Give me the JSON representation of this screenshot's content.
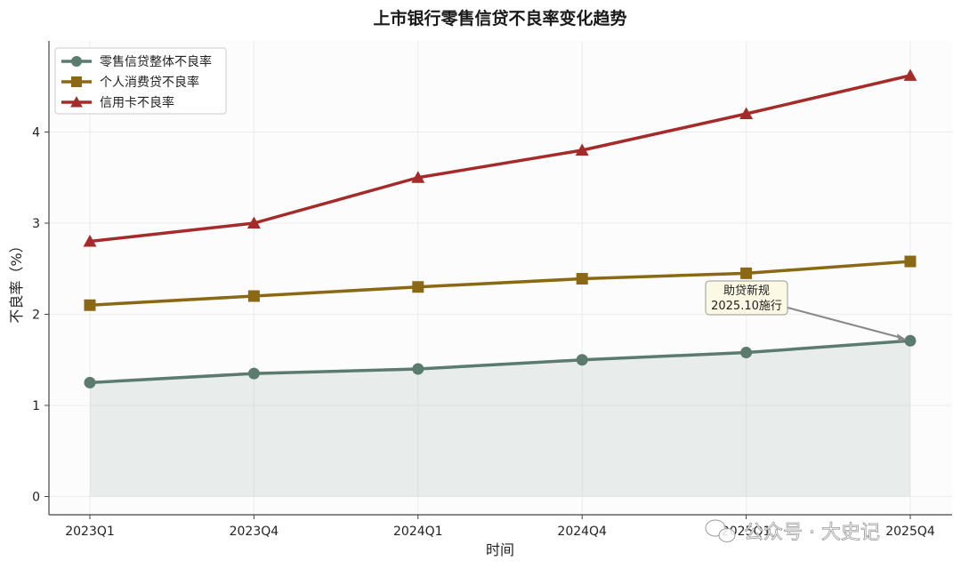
{
  "chart_data": {
    "type": "line",
    "title": "上市银行零售信贷不良率变化趋势",
    "xlabel": "时间",
    "ylabel": "不良率（%）",
    "categories": [
      "2023Q1",
      "2023Q4",
      "2024Q1",
      "2024Q4",
      "2025Q1",
      "2025Q4"
    ],
    "ylim": [
      -0.2,
      5.0
    ],
    "yticks": [
      0,
      1,
      2,
      3,
      4
    ],
    "grid": true,
    "legend_position": "top-left",
    "series": [
      {
        "name": "零售信贷整体不良率",
        "values": [
          1.25,
          1.35,
          1.4,
          1.5,
          1.58,
          1.71
        ],
        "color": "#5b7b6f",
        "marker": "circle",
        "fill_below": true
      },
      {
        "name": "个人消费贷不良率",
        "values": [
          2.1,
          2.2,
          2.3,
          2.39,
          2.45,
          2.58
        ],
        "color": "#8b6914",
        "marker": "square"
      },
      {
        "name": "信用卡不良率",
        "values": [
          2.8,
          3.0,
          3.5,
          3.8,
          4.2,
          4.62
        ],
        "color": "#a52a2a",
        "marker": "triangle"
      }
    ],
    "annotation": {
      "lines": [
        "助贷新规",
        "2025.10施行"
      ],
      "target_category": "2025Q4",
      "target_value": 1.71,
      "box_color": "#fbf8e3"
    }
  },
  "watermark": "公众号 · 大史记"
}
